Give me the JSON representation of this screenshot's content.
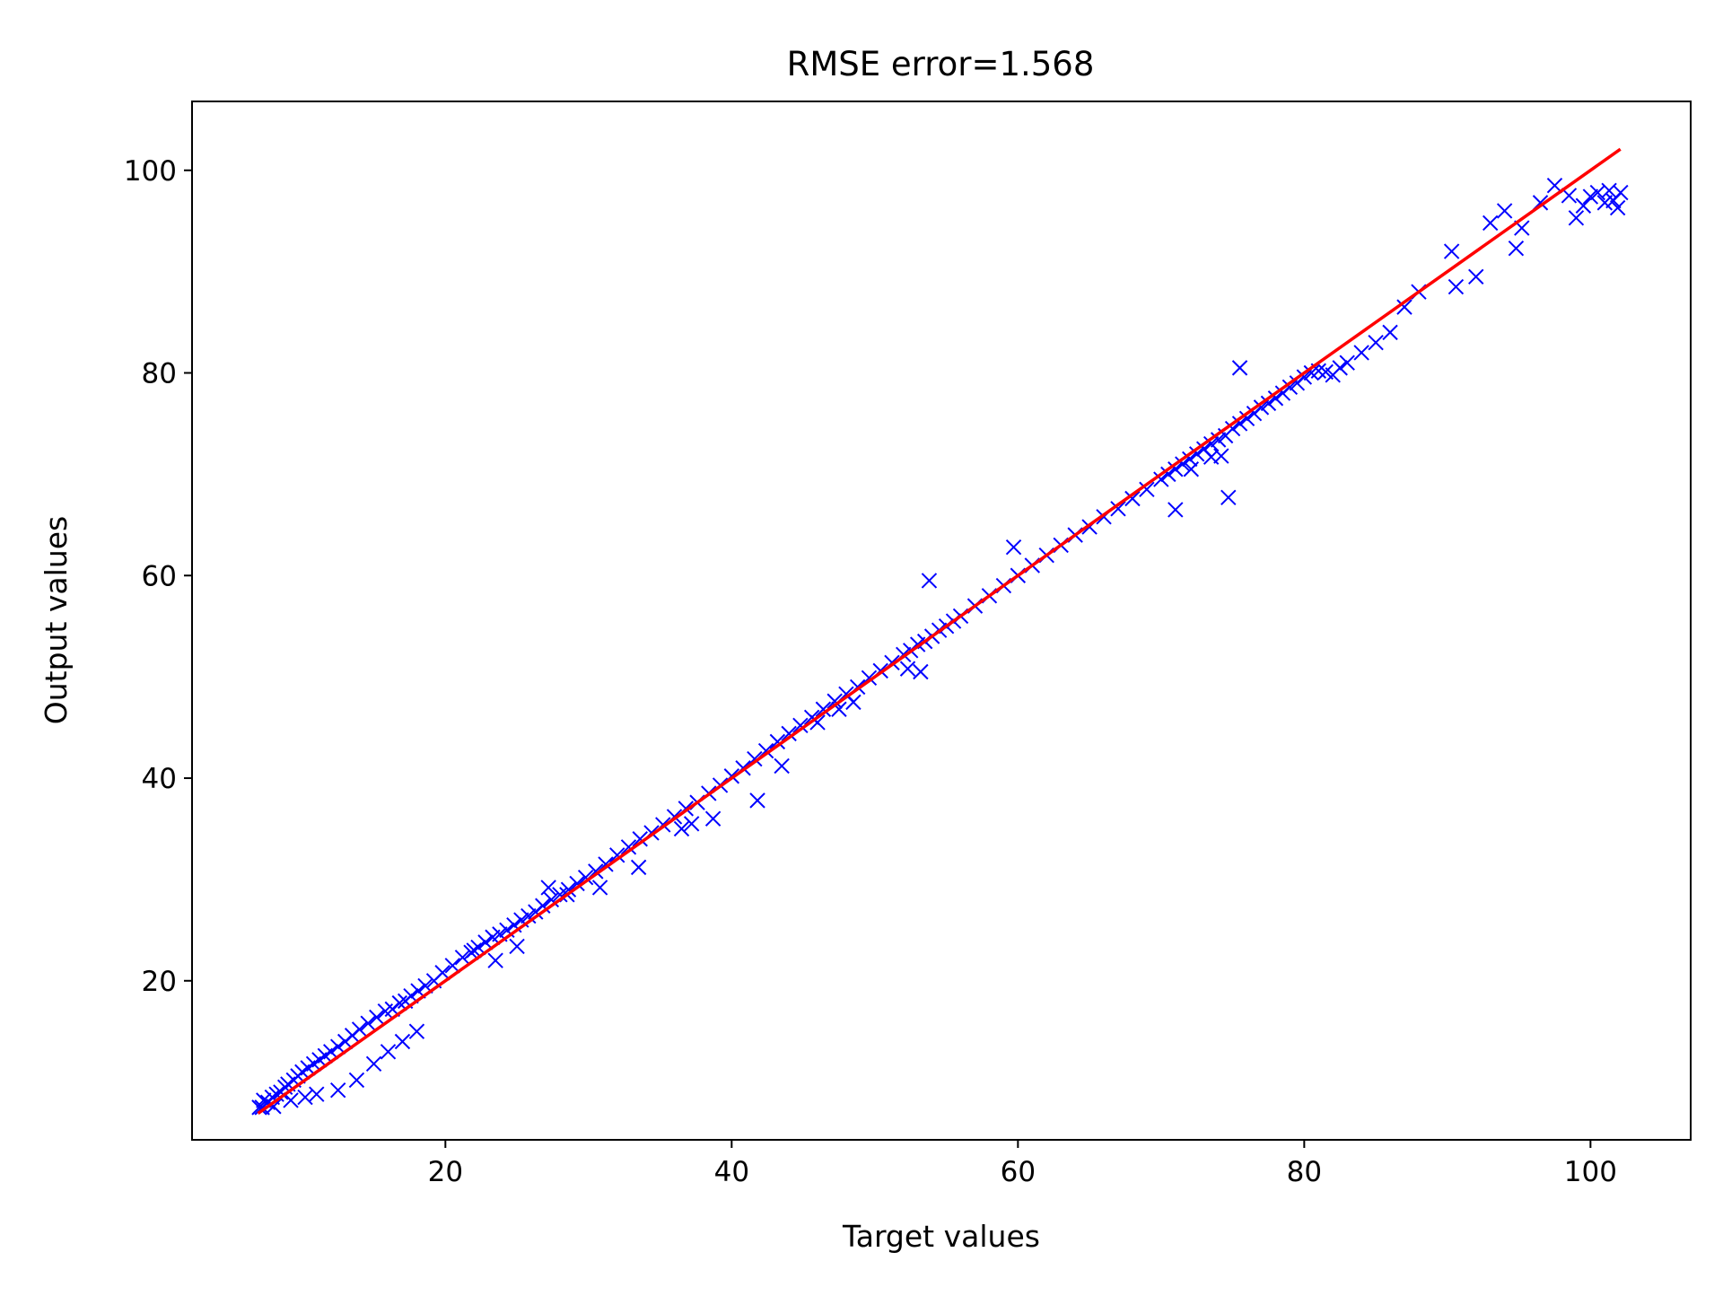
{
  "chart_data": {
    "type": "scatter",
    "title": "RMSE error=1.568",
    "xlabel": "Target values",
    "ylabel": "Output values",
    "xlim": [
      2.3,
      107
    ],
    "ylim": [
      4.3,
      106.8
    ],
    "xticks": [
      20,
      40,
      60,
      80,
      100
    ],
    "yticks": [
      20,
      40,
      60,
      80,
      100
    ],
    "grid": false,
    "legend": "none",
    "colors": {
      "points": "#0000ff",
      "line": "#ff0000",
      "axes": "#000000",
      "background": "#ffffff"
    },
    "series": [
      {
        "marker": "x",
        "x": [
          7.0,
          7.3,
          7.6,
          7.9,
          8.2,
          8.5,
          8.8,
          9.0,
          9.4,
          9.7,
          10.0,
          10.4,
          10.8,
          11.2,
          11.6,
          12.0,
          12.5,
          13.0,
          13.5,
          14.0,
          14.6,
          15.2,
          15.8,
          16.3,
          16.8,
          17.2,
          17.6,
          18.1,
          18.6,
          19.2,
          19.8,
          20.5,
          21.2,
          21.8,
          22.3,
          22.8,
          23.3,
          23.8,
          24.3,
          24.8,
          25.3,
          25.8,
          26.3,
          26.8,
          27.4,
          28.0,
          28.6,
          29.2,
          29.8,
          30.5,
          31.2,
          32.0,
          32.8,
          33.6,
          34.4,
          35.2,
          36.0,
          36.8,
          37.6,
          38.4,
          39.2,
          40.0,
          40.8,
          41.6,
          42.4,
          43.2,
          44.0,
          44.8,
          45.6,
          46.4,
          47.2,
          48.0,
          48.8,
          49.6,
          50.4,
          51.2,
          52.0,
          52.5,
          53.0,
          53.5,
          54.0,
          54.5,
          55.0,
          55.5,
          56.0,
          57.0,
          58.0,
          59.0,
          60.0,
          61.0,
          62.0,
          63.0,
          64.0,
          65.0,
          66.0,
          67.0,
          68.0,
          69.0,
          70.0,
          70.5,
          71.0,
          71.5,
          72.0,
          72.5,
          73.0,
          73.5,
          74.0,
          74.5,
          75.0,
          75.5,
          76.0,
          76.5,
          77.0,
          77.5,
          78.0,
          78.5,
          79.0,
          79.5,
          80.0,
          80.5,
          81.0,
          81.5,
          82.0,
          82.5,
          83.0,
          84.0,
          85.0,
          86.0,
          87.0,
          88.0,
          90.3,
          90.6,
          92.0,
          93.0,
          94.0,
          94.8,
          95.2,
          96.5,
          97.5,
          98.5,
          99.0,
          99.5,
          100.0,
          100.5,
          101.0,
          101.3,
          101.6,
          101.9,
          102.1,
          7.2,
          8.0,
          9.2,
          10.2,
          11.0,
          12.5,
          13.8,
          15.0,
          16.0,
          17.0,
          18.0,
          22.0,
          23.5,
          25.0,
          27.2,
          28.5,
          30.8,
          33.5,
          36.5,
          38.7,
          41.8,
          43.5,
          47.5,
          48.5,
          52.3,
          53.8,
          59.7,
          71.0,
          72.1,
          73.5,
          74.2,
          74.7,
          75.5,
          53.2,
          37.2,
          46.0
        ],
        "y": [
          7.5,
          8.2,
          8.0,
          8.5,
          8.8,
          9.0,
          9.5,
          9.8,
          10.2,
          10.6,
          11.0,
          11.4,
          11.8,
          12.2,
          12.6,
          13.0,
          13.5,
          14.0,
          14.6,
          15.2,
          15.8,
          16.4,
          17.0,
          17.2,
          17.8,
          18.0,
          18.5,
          19.0,
          19.5,
          20.0,
          20.8,
          21.5,
          22.3,
          22.8,
          23.3,
          23.8,
          24.3,
          24.6,
          25.0,
          25.5,
          26.0,
          26.4,
          26.8,
          27.4,
          28.0,
          28.5,
          29.0,
          29.6,
          30.2,
          30.8,
          31.5,
          32.4,
          33.2,
          34.0,
          34.6,
          35.4,
          36.2,
          37.0,
          37.6,
          38.5,
          39.3,
          40.2,
          41.0,
          41.9,
          42.7,
          43.6,
          44.4,
          45.2,
          46.0,
          46.8,
          47.6,
          48.3,
          49.0,
          49.9,
          50.6,
          51.4,
          52.2,
          52.6,
          53.2,
          53.5,
          54.0,
          54.6,
          55.0,
          55.5,
          56.0,
          57.0,
          58.0,
          59.0,
          60.0,
          61.0,
          62.0,
          63.0,
          64.0,
          64.8,
          65.8,
          66.6,
          67.6,
          68.5,
          69.5,
          70.0,
          70.5,
          71.0,
          71.5,
          72.0,
          72.5,
          73.0,
          73.4,
          73.8,
          74.5,
          75.0,
          75.5,
          76.0,
          76.6,
          77.0,
          77.5,
          78.0,
          78.6,
          79.0,
          79.6,
          80.0,
          80.2,
          80.1,
          79.8,
          80.5,
          81.0,
          82.0,
          83.0,
          84.0,
          86.5,
          88.0,
          92.0,
          88.5,
          89.5,
          94.8,
          96.0,
          92.3,
          94.3,
          96.8,
          98.5,
          97.5,
          95.3,
          96.5,
          97.4,
          97.8,
          96.8,
          98.0,
          97.0,
          96.3,
          97.8,
          7.5,
          7.6,
          8.2,
          8.5,
          8.8,
          9.2,
          10.2,
          11.8,
          13.0,
          14.0,
          15.0,
          23.0,
          22.0,
          23.4,
          29.2,
          28.5,
          29.2,
          31.2,
          35.0,
          36.0,
          37.8,
          41.2,
          46.8,
          47.5,
          50.8,
          59.5,
          62.8,
          66.5,
          70.5,
          71.7,
          71.8,
          67.7,
          80.5,
          50.5,
          35.5,
          45.5
        ]
      },
      {
        "marker": "line",
        "x": [
          7,
          102
        ],
        "y": [
          7,
          102
        ]
      }
    ]
  }
}
